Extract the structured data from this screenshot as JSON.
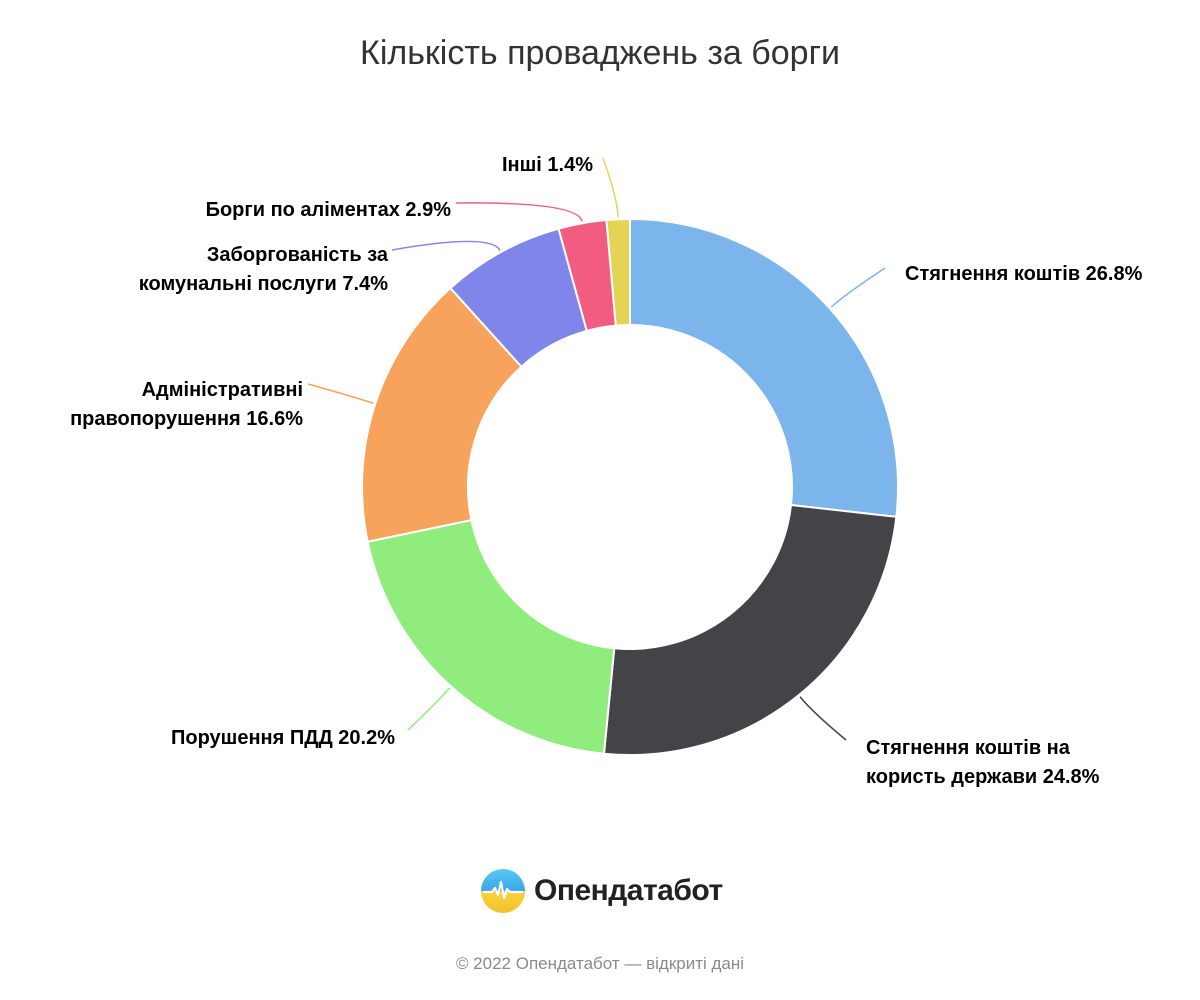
{
  "title": "Кількість проваджень за борги",
  "chart_data": {
    "type": "pie",
    "donut": true,
    "title": "Кількість проваджень за борги",
    "slices": [
      {
        "label_lines": [
          "Стягнення коштів 26.8%"
        ],
        "value": 26.8,
        "color": "#7cb5ec"
      },
      {
        "label_lines": [
          "Стягнення коштів на",
          "користь держави 24.8%"
        ],
        "value": 24.8,
        "color": "#434348"
      },
      {
        "label_lines": [
          "Порушення ПДД 20.2%"
        ],
        "value": 20.2,
        "color": "#90ed7d"
      },
      {
        "label_lines": [
          "Адміністративні",
          "правопорушення 16.6%"
        ],
        "value": 16.6,
        "color": "#f7a35c"
      },
      {
        "label_lines": [
          "Заборгованість за",
          "комунальні послуги 7.4%"
        ],
        "value": 7.4,
        "color": "#8085e9"
      },
      {
        "label_lines": [
          "Борги по аліментах 2.9%"
        ],
        "value": 2.9,
        "color": "#f15c80"
      },
      {
        "label_lines": [
          "Інші 1.4%"
        ],
        "value": 1.4,
        "color": "#e4d354"
      }
    ]
  },
  "brand": {
    "name": "Опендатабот",
    "logo_icon": "opendatabot-logo-icon"
  },
  "footer": {
    "copyright": "© 2022 Опендатабот — відкриті дані"
  }
}
